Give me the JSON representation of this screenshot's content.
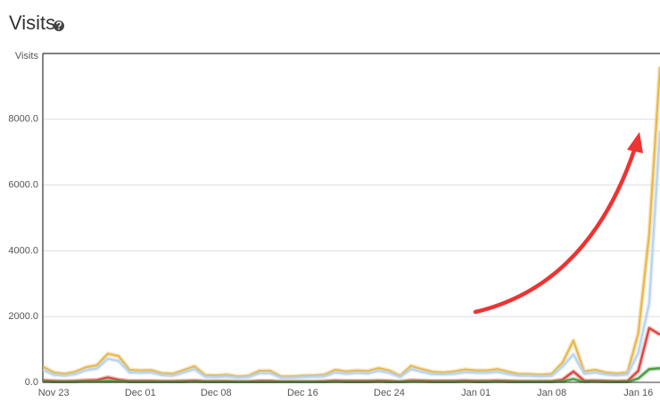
{
  "chart_data": {
    "type": "line",
    "title": "Visits",
    "y_label": "Visits",
    "categories": [
      null,
      "Nov 23",
      null,
      null,
      null,
      null,
      null,
      null,
      null,
      "Dec 01",
      null,
      null,
      null,
      null,
      null,
      null,
      "Dec 08",
      null,
      null,
      null,
      null,
      null,
      null,
      null,
      "Dec 16",
      null,
      null,
      null,
      null,
      null,
      null,
      null,
      "Dec 24",
      null,
      null,
      null,
      null,
      null,
      null,
      null,
      "Jan 01",
      null,
      null,
      null,
      null,
      null,
      null,
      "Jan 08",
      null,
      null,
      null,
      null,
      null,
      null,
      null,
      "Jan 16",
      null,
      null
    ],
    "series": [
      {
        "color": "#e8b84a",
        "values": [
          480,
          300,
          260,
          320,
          460,
          520,
          870,
          800,
          380,
          360,
          370,
          280,
          260,
          370,
          490,
          220,
          210,
          230,
          180,
          200,
          350,
          350,
          180,
          180,
          200,
          210,
          230,
          380,
          330,
          360,
          340,
          430,
          360,
          200,
          500,
          400,
          320,
          300,
          330,
          390,
          360,
          360,
          400,
          320,
          250,
          250,
          230,
          260,
          600,
          1270,
          330,
          380,
          300,
          270,
          300,
          1500,
          4500,
          9600
        ]
      },
      {
        "color": "#b8d4ee",
        "values": [
          380,
          230,
          200,
          250,
          370,
          420,
          720,
          650,
          300,
          290,
          300,
          220,
          200,
          300,
          400,
          170,
          160,
          180,
          140,
          160,
          280,
          280,
          140,
          140,
          160,
          170,
          180,
          300,
          260,
          290,
          270,
          350,
          290,
          160,
          400,
          320,
          250,
          240,
          260,
          310,
          290,
          290,
          320,
          250,
          200,
          200,
          180,
          200,
          480,
          850,
          260,
          300,
          240,
          210,
          240,
          900,
          2400,
          7650
        ]
      },
      {
        "color": "#d9453f",
        "values": [
          60,
          40,
          30,
          40,
          60,
          70,
          150,
          80,
          40,
          40,
          40,
          30,
          30,
          40,
          50,
          30,
          30,
          30,
          20,
          20,
          40,
          40,
          20,
          20,
          20,
          20,
          30,
          50,
          40,
          40,
          40,
          50,
          40,
          20,
          60,
          50,
          40,
          40,
          40,
          50,
          40,
          40,
          50,
          40,
          30,
          30,
          30,
          30,
          80,
          330,
          50,
          50,
          40,
          30,
          40,
          350,
          1650,
          1450
        ]
      },
      {
        "color": "#4a9a3f",
        "values": [
          20,
          10,
          10,
          10,
          20,
          20,
          40,
          30,
          10,
          10,
          10,
          10,
          10,
          10,
          20,
          10,
          10,
          10,
          10,
          10,
          10,
          10,
          10,
          10,
          10,
          10,
          10,
          20,
          10,
          10,
          10,
          20,
          10,
          10,
          20,
          20,
          10,
          10,
          10,
          20,
          10,
          10,
          20,
          10,
          10,
          10,
          10,
          10,
          30,
          100,
          10,
          20,
          10,
          10,
          10,
          120,
          400,
          430
        ]
      }
    ],
    "ylim": [
      0,
      10000
    ],
    "yticks": [
      {
        "value": 0,
        "label": "0.0"
      },
      {
        "value": 2000,
        "label": "2000.0"
      },
      {
        "value": 4000,
        "label": "4000.0"
      },
      {
        "value": 6000,
        "label": "6000.0"
      },
      {
        "value": 8000,
        "label": "8000.0"
      }
    ],
    "grid": true
  }
}
